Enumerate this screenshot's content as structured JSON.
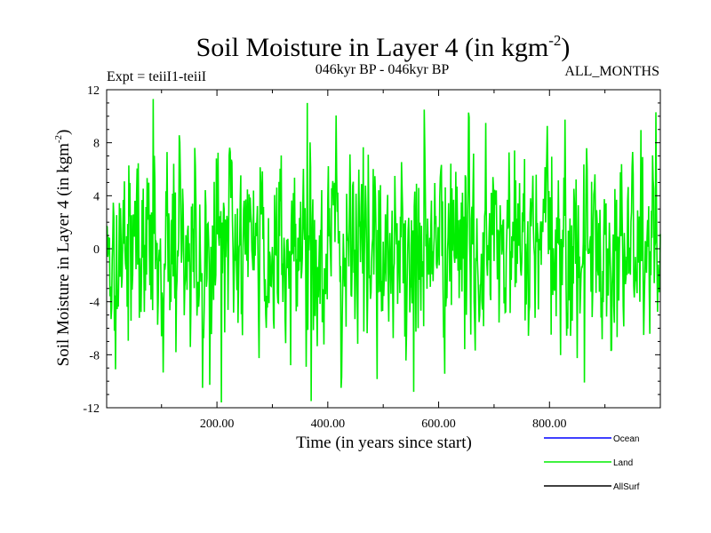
{
  "chart_data": {
    "type": "line",
    "title_main": "Soil Moisture in Layer 4 (in kgm",
    "title_sup": "-2",
    "title_close": ")",
    "subtitle_left": "Expt = teiiI1-teiiI",
    "subtitle_center": "046kyr BP - 046kyr BP",
    "subtitle_right": "ALL_MONTHS",
    "xlabel": "Time (in years since start)",
    "ylabel_main": "Soil Moisture in Layer 4 (in kgm",
    "ylabel_sup": "-2",
    "ylabel_close": ")",
    "xlim": [
      1,
      1000
    ],
    "ylim": [
      -12,
      12
    ],
    "x_ticks": [
      200,
      400,
      600,
      800
    ],
    "x_tick_labels": [
      "200.00",
      "400.00",
      "600.00",
      "800.00"
    ],
    "y_ticks": [
      12,
      8,
      4,
      0,
      -4,
      -8,
      -12
    ],
    "y_tick_labels": [
      "12",
      "8",
      "4",
      "0",
      "-4",
      "-8",
      "-12"
    ],
    "series": [
      {
        "name": "Ocean",
        "color": "#0000ff",
        "values": []
      },
      {
        "name": "Land",
        "color": "#00ee00",
        "x_start": 1,
        "x_step": 1,
        "amplitude": 3.8,
        "peaks": [
          [
            85,
            11.3
          ],
          [
            208,
            -11.6
          ],
          [
            363,
            11
          ],
          [
            370,
            -11.5
          ],
          [
            555,
            -10.8
          ],
          [
            992,
            10.3
          ]
        ]
      },
      {
        "name": "AllSurf",
        "color": "#000000",
        "values": []
      }
    ],
    "legend_position": "bottom-right"
  }
}
